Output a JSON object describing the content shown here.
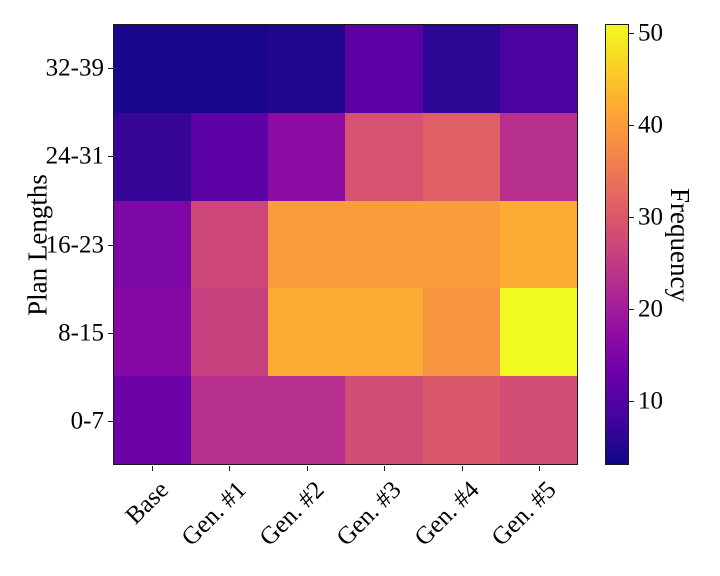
{
  "y_axis": {
    "label": "Plan Lengths",
    "tick_labels": [
      "32-39",
      "24-31",
      "16-23",
      "8-15",
      "0-7"
    ]
  },
  "x_axis": {
    "tick_labels": [
      "Base",
      "Gen. #1",
      "Gen. #2",
      "Gen. #3",
      "Gen. #4",
      "Gen. #5"
    ]
  },
  "colorbar": {
    "label": "Frequency",
    "tick_values": [
      10,
      20,
      30,
      40,
      50
    ]
  },
  "chart_data": {
    "type": "heatmap",
    "title": "",
    "xlabel": "",
    "ylabel": "Plan Lengths",
    "colorbar_label": "Frequency",
    "categories_x": [
      "Base",
      "Gen. #1",
      "Gen. #2",
      "Gen. #3",
      "Gen. #4",
      "Gen. #5"
    ],
    "categories_y": [
      "32-39",
      "24-31",
      "16-23",
      "8-15",
      "0-7"
    ],
    "values": [
      [
        4,
        4,
        5,
        11,
        6,
        9
      ],
      [
        7,
        11,
        17,
        29,
        31,
        23
      ],
      [
        15,
        27,
        40,
        40,
        40,
        42
      ],
      [
        16,
        26,
        42,
        42,
        39,
        51
      ],
      [
        13,
        23,
        23,
        28,
        30,
        28
      ]
    ],
    "vmin": 3,
    "vmax": 51,
    "colormap": "plasma",
    "colormap_stops": [
      "#0d0887",
      "#41049d",
      "#6a00a8",
      "#8f0da4",
      "#b12a90",
      "#cc4778",
      "#e16462",
      "#f2844b",
      "#fca636",
      "#fcce25",
      "#f0f921"
    ],
    "colorbar_ticks": [
      10,
      20,
      30,
      40,
      50
    ],
    "legend_position": "right-colorbar",
    "grid": false
  },
  "colors": {
    "background": "#ffffff",
    "spine": "#1a1a1a",
    "text": "#000000"
  }
}
